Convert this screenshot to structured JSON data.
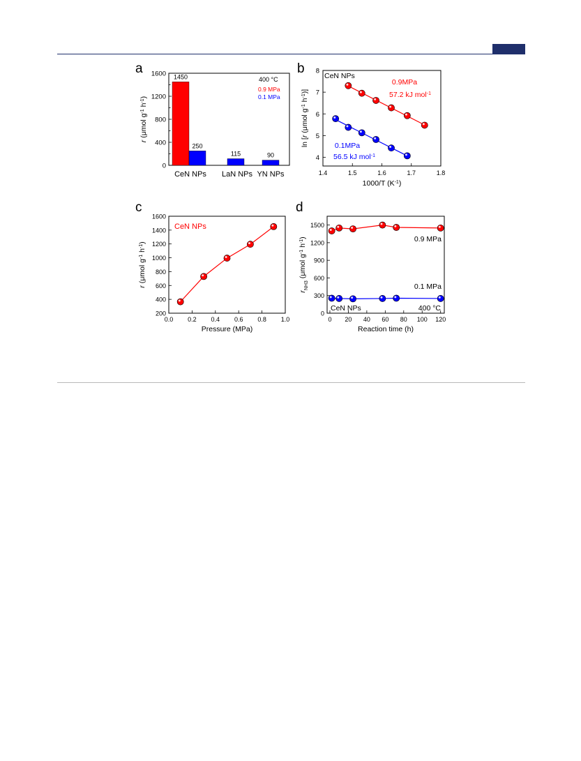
{
  "header": {
    "accent_color": "#1f2f6b"
  },
  "chart_data": [
    {
      "panel": "a",
      "type": "bar",
      "categories": [
        "CeN NPs",
        "LaN NPs",
        "YN NPs"
      ],
      "series": [
        {
          "name": "0.9 MPa",
          "color": "#ff0000",
          "values": [
            1450,
            null,
            null
          ]
        },
        {
          "name": "0.1 MPa",
          "color": "#0000ff",
          "values": [
            250,
            115,
            90
          ]
        }
      ],
      "data_labels": [
        "1450",
        "250",
        "115",
        "90"
      ],
      "annotations": [
        "400 °C",
        "0.9 MPa",
        "0.1 MPa"
      ],
      "ylabel": "r (μmol g⁻¹ h⁻¹)",
      "ylim": [
        0,
        1600
      ],
      "yticks": [
        0,
        400,
        800,
        1200,
        1600
      ],
      "yticks_minor": [
        200,
        600,
        1000,
        1400
      ]
    },
    {
      "panel": "b",
      "type": "scatter",
      "title": "CeN NPs",
      "xlabel": "1000/T (K⁻¹)",
      "ylabel": "ln [r (μmol g⁻¹ h⁻¹)]",
      "xlim": [
        1.4,
        1.8
      ],
      "ylim": [
        3.6,
        8.0
      ],
      "xticks": [
        1.4,
        1.5,
        1.6,
        1.7,
        1.8
      ],
      "yticks": [
        4,
        5,
        6,
        7,
        8
      ],
      "series": [
        {
          "name": "0.9MPa",
          "color": "#ff0000",
          "annotation": "57.2 kJ mol⁻¹",
          "x": [
            1.486,
            1.532,
            1.58,
            1.632,
            1.686,
            1.745
          ],
          "y": [
            7.3,
            6.95,
            6.62,
            6.28,
            5.92,
            5.48
          ]
        },
        {
          "name": "0.1MPa",
          "color": "#0000ff",
          "annotation": "56.5 kJ mol⁻¹",
          "x": [
            1.443,
            1.486,
            1.532,
            1.58,
            1.632,
            1.686
          ],
          "y": [
            5.78,
            5.38,
            5.13,
            4.82,
            4.43,
            4.07
          ]
        }
      ]
    },
    {
      "panel": "c",
      "type": "line",
      "title": "CeN NPs",
      "xlabel": "Pressure (MPa)",
      "ylabel": "r (μmol g⁻¹ h⁻¹)",
      "xlim": [
        0.0,
        1.0
      ],
      "ylim": [
        200,
        1600
      ],
      "xticks": [
        0.0,
        0.2,
        0.4,
        0.6,
        0.8,
        1.0
      ],
      "yticks": [
        200,
        400,
        600,
        800,
        1000,
        1200,
        1400,
        1600
      ],
      "series": [
        {
          "name": "CeN NPs",
          "color": "#ff0000",
          "x": [
            0.1,
            0.3,
            0.5,
            0.7,
            0.9
          ],
          "y": [
            365,
            730,
            995,
            1195,
            1450
          ]
        }
      ]
    },
    {
      "panel": "d",
      "type": "line",
      "xlabel": "Reaction time (h)",
      "ylabel": "r NH3 (μmol g⁻¹ h⁻¹)",
      "xlim": [
        -3,
        124
      ],
      "ylim": [
        0,
        1650
      ],
      "xticks": [
        0,
        20,
        40,
        60,
        80,
        100,
        120
      ],
      "yticks": [
        0,
        300,
        600,
        900,
        1200,
        1500
      ],
      "annotations": [
        "CeN NPs",
        "400 °C"
      ],
      "series": [
        {
          "name": "0.9 MPa",
          "color": "#ff0000",
          "x": [
            2,
            10,
            25,
            57,
            72,
            120
          ],
          "y": [
            1400,
            1450,
            1435,
            1500,
            1460,
            1450
          ]
        },
        {
          "name": "0.1 MPa",
          "color": "#0000ff",
          "x": [
            2,
            10,
            25,
            57,
            72,
            120
          ],
          "y": [
            255,
            250,
            245,
            250,
            255,
            250
          ]
        }
      ]
    }
  ]
}
